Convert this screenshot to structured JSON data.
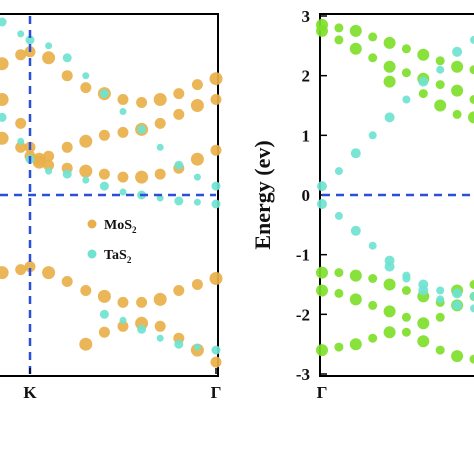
{
  "chart_data": [
    {
      "type": "scatter",
      "panel": "left",
      "ylim": [
        -3,
        3
      ],
      "x_ticks": [
        {
          "label": "K",
          "pos": 0.0
        },
        {
          "label": "Γ",
          "pos": 1.0
        }
      ],
      "x_tick_positions": {
        "K": 0.0,
        "Γ": 1.0
      },
      "fermi_level": 0,
      "legend": {
        "placement": "center-right",
        "entries": [
          {
            "base": "MoS",
            "sub": "2",
            "color": "#e8b04a"
          },
          {
            "base": "TaS",
            "sub": "2",
            "color": "#6fe3d0"
          }
        ]
      },
      "series": [
        {
          "name": "MoS2",
          "color": "#e8b04a",
          "bands": [
            [
              [
                -0.15,
                2.2
              ],
              [
                -0.05,
                2.35
              ],
              [
                0.0,
                2.4
              ],
              [
                0.1,
                2.3
              ],
              [
                0.2,
                2.0
              ],
              [
                0.3,
                1.8
              ],
              [
                0.4,
                1.7
              ],
              [
                0.5,
                1.6
              ],
              [
                0.6,
                1.55
              ],
              [
                0.7,
                1.6
              ],
              [
                0.8,
                1.7
              ],
              [
                0.9,
                1.85
              ],
              [
                1.0,
                1.95
              ]
            ],
            [
              [
                -0.15,
                1.6
              ],
              [
                -0.05,
                1.2
              ],
              [
                0.0,
                0.8
              ],
              [
                0.05,
                0.6
              ],
              [
                0.1,
                0.65
              ],
              [
                0.2,
                0.8
              ],
              [
                0.3,
                0.9
              ],
              [
                0.4,
                1.0
              ],
              [
                0.5,
                1.05
              ],
              [
                0.6,
                1.1
              ],
              [
                0.7,
                1.2
              ],
              [
                0.8,
                1.35
              ],
              [
                0.9,
                1.5
              ],
              [
                1.0,
                1.6
              ]
            ],
            [
              [
                -0.15,
                0.95
              ],
              [
                -0.05,
                0.8
              ],
              [
                0.0,
                0.65
              ],
              [
                0.05,
                0.55
              ],
              [
                0.1,
                0.5
              ],
              [
                0.2,
                0.45
              ],
              [
                0.3,
                0.4
              ],
              [
                0.4,
                0.35
              ],
              [
                0.5,
                0.3
              ],
              [
                0.6,
                0.3
              ],
              [
                0.7,
                0.35
              ],
              [
                0.8,
                0.45
              ],
              [
                0.9,
                0.6
              ],
              [
                1.0,
                0.75
              ]
            ],
            [
              [
                -0.15,
                -1.3
              ],
              [
                -0.05,
                -1.25
              ],
              [
                0.0,
                -1.2
              ],
              [
                0.1,
                -1.3
              ],
              [
                0.2,
                -1.45
              ],
              [
                0.3,
                -1.6
              ],
              [
                0.4,
                -1.7
              ],
              [
                0.5,
                -1.8
              ],
              [
                0.6,
                -1.8
              ],
              [
                0.7,
                -1.75
              ],
              [
                0.8,
                -1.6
              ],
              [
                0.9,
                -1.5
              ],
              [
                1.0,
                -1.4
              ]
            ],
            [
              [
                0.3,
                -2.5
              ],
              [
                0.4,
                -2.3
              ],
              [
                0.5,
                -2.2
              ],
              [
                0.6,
                -2.15
              ],
              [
                0.7,
                -2.2
              ],
              [
                0.8,
                -2.4
              ],
              [
                0.9,
                -2.6
              ],
              [
                1.0,
                -2.8
              ]
            ]
          ]
        },
        {
          "name": "TaS2",
          "color": "#6fe3d0",
          "bands": [
            [
              [
                -0.15,
                2.9
              ],
              [
                -0.05,
                2.7
              ],
              [
                0.0,
                2.6
              ],
              [
                0.1,
                2.5
              ],
              [
                0.2,
                2.3
              ],
              [
                0.3,
                2.0
              ],
              [
                0.4,
                1.7
              ],
              [
                0.5,
                1.4
              ],
              [
                0.6,
                1.1
              ],
              [
                0.7,
                0.8
              ],
              [
                0.8,
                0.5
              ],
              [
                0.9,
                0.3
              ],
              [
                1.0,
                0.15
              ]
            ],
            [
              [
                -0.15,
                1.3
              ],
              [
                -0.05,
                0.9
              ],
              [
                0.0,
                0.6
              ],
              [
                0.1,
                0.4
              ],
              [
                0.2,
                0.35
              ],
              [
                0.3,
                0.25
              ],
              [
                0.4,
                0.15
              ],
              [
                0.5,
                0.05
              ],
              [
                0.6,
                0.0
              ],
              [
                0.7,
                -0.05
              ],
              [
                0.8,
                -0.1
              ],
              [
                0.9,
                -0.12
              ],
              [
                1.0,
                -0.15
              ]
            ],
            [
              [
                0.4,
                -2.0
              ],
              [
                0.5,
                -2.1
              ],
              [
                0.6,
                -2.25
              ],
              [
                0.7,
                -2.4
              ],
              [
                0.8,
                -2.5
              ],
              [
                0.9,
                -2.55
              ],
              [
                1.0,
                -2.6
              ]
            ]
          ]
        }
      ]
    },
    {
      "type": "scatter",
      "panel": "right",
      "ylim": [
        -3,
        3
      ],
      "ylabel": "Energy (ev)",
      "y_ticks": [
        3,
        2,
        1,
        0,
        -1,
        -2,
        -3
      ],
      "x_ticks": [
        {
          "label": "Γ",
          "pos": 0.0
        }
      ],
      "x_tick_positions": {
        "Γ": 0.0
      },
      "fermi_level": 0,
      "series": [
        {
          "name": "green",
          "color": "#7ee02a",
          "bands": [
            [
              [
                0.0,
                2.85
              ],
              [
                0.05,
                2.8
              ],
              [
                0.1,
                2.75
              ],
              [
                0.15,
                2.65
              ],
              [
                0.2,
                2.55
              ],
              [
                0.25,
                2.45
              ],
              [
                0.3,
                2.35
              ],
              [
                0.35,
                2.25
              ],
              [
                0.4,
                2.15
              ],
              [
                0.45,
                2.1
              ]
            ],
            [
              [
                0.0,
                2.75
              ],
              [
                0.05,
                2.6
              ],
              [
                0.1,
                2.45
              ],
              [
                0.15,
                2.3
              ],
              [
                0.2,
                2.15
              ],
              [
                0.25,
                2.05
              ],
              [
                0.3,
                1.95
              ],
              [
                0.35,
                1.85
              ],
              [
                0.4,
                1.75
              ],
              [
                0.45,
                1.6
              ]
            ],
            [
              [
                0.2,
                1.9
              ],
              [
                0.3,
                1.7
              ],
              [
                0.35,
                1.5
              ],
              [
                0.4,
                1.35
              ],
              [
                0.45,
                1.3
              ]
            ],
            [
              [
                0.0,
                -1.3
              ],
              [
                0.05,
                -1.3
              ],
              [
                0.1,
                -1.35
              ],
              [
                0.15,
                -1.4
              ],
              [
                0.2,
                -1.5
              ],
              [
                0.25,
                -1.6
              ],
              [
                0.3,
                -1.7
              ],
              [
                0.35,
                -1.8
              ],
              [
                0.4,
                -1.6
              ],
              [
                0.45,
                -1.5
              ]
            ],
            [
              [
                0.0,
                -1.6
              ],
              [
                0.05,
                -1.65
              ],
              [
                0.1,
                -1.75
              ],
              [
                0.15,
                -1.85
              ],
              [
                0.2,
                -1.95
              ],
              [
                0.25,
                -2.05
              ],
              [
                0.3,
                -2.15
              ],
              [
                0.35,
                -2.05
              ],
              [
                0.4,
                -1.85
              ],
              [
                0.45,
                -1.7
              ]
            ],
            [
              [
                0.0,
                -2.6
              ],
              [
                0.05,
                -2.55
              ],
              [
                0.1,
                -2.5
              ],
              [
                0.15,
                -2.4
              ],
              [
                0.2,
                -2.3
              ],
              [
                0.25,
                -2.3
              ],
              [
                0.3,
                -2.45
              ],
              [
                0.35,
                -2.6
              ],
              [
                0.4,
                -2.7
              ],
              [
                0.45,
                -2.75
              ]
            ]
          ]
        },
        {
          "name": "cyan",
          "color": "#6fe3d0",
          "bands": [
            [
              [
                0.0,
                0.15
              ],
              [
                0.05,
                0.4
              ],
              [
                0.1,
                0.7
              ],
              [
                0.15,
                1.0
              ],
              [
                0.2,
                1.3
              ],
              [
                0.25,
                1.6
              ],
              [
                0.3,
                1.9
              ],
              [
                0.35,
                2.1
              ],
              [
                0.4,
                2.4
              ],
              [
                0.45,
                2.6
              ]
            ],
            [
              [
                0.0,
                -0.15
              ],
              [
                0.05,
                -0.35
              ],
              [
                0.1,
                -0.6
              ],
              [
                0.15,
                -0.85
              ],
              [
                0.2,
                -1.1
              ],
              [
                0.25,
                -1.35
              ],
              [
                0.3,
                -1.5
              ],
              [
                0.35,
                -1.6
              ],
              [
                0.4,
                -1.65
              ],
              [
                0.45,
                -1.7
              ]
            ],
            [
              [
                0.2,
                -1.2
              ],
              [
                0.25,
                -1.4
              ],
              [
                0.3,
                -1.6
              ],
              [
                0.35,
                -1.75
              ],
              [
                0.4,
                -1.85
              ],
              [
                0.45,
                -1.9
              ]
            ]
          ]
        }
      ]
    }
  ]
}
